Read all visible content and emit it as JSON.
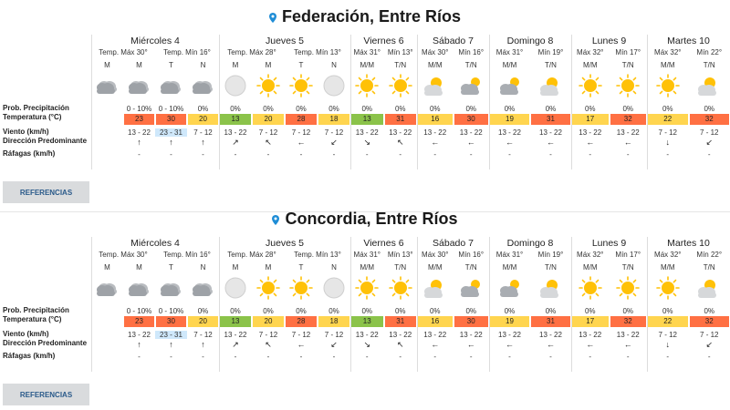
{
  "colors": {
    "pin": "#1f8dd6",
    "t_green": "#8bc34a",
    "t_yellow": "#ffd54f",
    "t_orange": "#ff7043",
    "t_red": "#f4511e",
    "t_lightgreen": "#c5e36b",
    "t_blue": "#cfe8fb"
  },
  "labels": {
    "precip": "Prob. Precipitación",
    "temp": "Temperatura (°C)",
    "wind": "Viento (km/h)",
    "dir": "Dirección Predominante",
    "gust": "Ráfagas (km/h)",
    "button": "REFERENCIAS"
  },
  "cities": [
    {
      "name": "Federación, Entre Ríos",
      "days": [
        {
          "name": "Miércoles 4",
          "tmax": "Temp. Máx 30°",
          "tmin": "Temp. Mín 16°",
          "periods": [
            "M",
            "M",
            "T",
            "N"
          ],
          "icons": [
            "cloudy",
            "cloudy",
            "cloudy",
            "cloudy"
          ],
          "precip": [
            "",
            "0 - 10%",
            "0 - 10%",
            "0%"
          ],
          "temps": [
            "",
            "23",
            "30",
            "20"
          ],
          "winds": [
            "",
            "13 - 22",
            "23 - 31",
            "7 - 12"
          ],
          "dirs": [
            "",
            "↑",
            "↑",
            "↑"
          ],
          "gusts": [
            "",
            "-",
            "-",
            "-"
          ]
        },
        {
          "name": "Jueves 5",
          "tmax": "Temp. Máx 28°",
          "tmin": "Temp. Mín 13°",
          "periods": [
            "M",
            "M",
            "T",
            "N"
          ],
          "icons": [
            "moon",
            "sun",
            "sun",
            "moon"
          ],
          "precip": [
            "0%",
            "0%",
            "0%",
            "0%"
          ],
          "temps": [
            "13",
            "20",
            "28",
            "18"
          ],
          "winds": [
            "13 - 22",
            "7 - 12",
            "7 - 12",
            "7 - 12"
          ],
          "dirs": [
            "↗",
            "↖",
            "←",
            "↙"
          ],
          "gusts": [
            "-",
            "-",
            "-",
            "-"
          ]
        },
        {
          "name": "Viernes 6",
          "tmax": "Máx 31°",
          "tmin": "Mín 13°",
          "periods": [
            "M/M",
            "T/N"
          ],
          "icons": [
            "sun",
            "sun"
          ],
          "precip": [
            "0%",
            "0%"
          ],
          "temps": [
            "13",
            "31"
          ],
          "winds": [
            "13 - 22",
            "13 - 22"
          ],
          "dirs": [
            "↘",
            "↖"
          ],
          "gusts": [
            "-",
            "-"
          ]
        },
        {
          "name": "Sábado 7",
          "tmax": "Máx 30°",
          "tmin": "Mín 16°",
          "periods": [
            "M/M",
            "T/N"
          ],
          "icons": [
            "partly",
            "cloudsun"
          ],
          "precip": [
            "0%",
            "0%"
          ],
          "temps": [
            "16",
            "30"
          ],
          "winds": [
            "13 - 22",
            "13 - 22"
          ],
          "dirs": [
            "←",
            "←"
          ],
          "gusts": [
            "-",
            "-"
          ]
        },
        {
          "name": "Domingo 8",
          "tmax": "Máx 31°",
          "tmin": "Mín 19°",
          "periods": [
            "M/M",
            "T/N"
          ],
          "icons": [
            "cloudsun",
            "partly"
          ],
          "precip": [
            "0%",
            "0%"
          ],
          "temps": [
            "19",
            "31"
          ],
          "winds": [
            "13 - 22",
            "13 - 22"
          ],
          "dirs": [
            "←",
            "←"
          ],
          "gusts": [
            "-",
            "-"
          ]
        },
        {
          "name": "Lunes 9",
          "tmax": "Máx 32°",
          "tmin": "Mín 17°",
          "periods": [
            "M/M",
            "T/N"
          ],
          "icons": [
            "sun",
            "sun"
          ],
          "precip": [
            "0%",
            "0%"
          ],
          "temps": [
            "17",
            "32"
          ],
          "winds": [
            "13 - 22",
            "13 - 22"
          ],
          "dirs": [
            "←",
            "←"
          ],
          "gusts": [
            "-",
            "-"
          ]
        },
        {
          "name": "Martes 10",
          "tmax": "Máx 32°",
          "tmin": "Mín 22°",
          "periods": [
            "M/M",
            "T/N"
          ],
          "icons": [
            "sun",
            "partly"
          ],
          "precip": [
            "0%",
            "0%"
          ],
          "temps": [
            "22",
            "32"
          ],
          "winds": [
            "7 - 12",
            "7 - 12"
          ],
          "dirs": [
            "↓",
            "↙"
          ],
          "gusts": [
            "-",
            "-"
          ]
        }
      ]
    },
    {
      "name": "Concordia, Entre Ríos",
      "days": [
        {
          "name": "Miércoles 4",
          "tmax": "Temp. Máx 30°",
          "tmin": "Temp. Mín 16°",
          "periods": [
            "M",
            "M",
            "T",
            "N"
          ],
          "icons": [
            "cloudy",
            "cloudy",
            "cloudy",
            "cloudy"
          ],
          "precip": [
            "",
            "0 - 10%",
            "0 - 10%",
            "0%"
          ],
          "temps": [
            "",
            "23",
            "30",
            "20"
          ],
          "winds": [
            "",
            "13 - 22",
            "23 - 31",
            "7 - 12"
          ],
          "dirs": [
            "",
            "↑",
            "↑",
            "↑"
          ],
          "gusts": [
            "",
            "-",
            "-",
            "-"
          ]
        },
        {
          "name": "Jueves 5",
          "tmax": "Temp. Máx 28°",
          "tmin": "Temp. Mín 13°",
          "periods": [
            "M",
            "M",
            "T",
            "N"
          ],
          "icons": [
            "moon",
            "sun",
            "sun",
            "moon"
          ],
          "precip": [
            "0%",
            "0%",
            "0%",
            "0%"
          ],
          "temps": [
            "13",
            "20",
            "28",
            "18"
          ],
          "winds": [
            "13 - 22",
            "7 - 12",
            "7 - 12",
            "7 - 12"
          ],
          "dirs": [
            "↗",
            "↖",
            "←",
            "↙"
          ],
          "gusts": [
            "-",
            "-",
            "-",
            "-"
          ]
        },
        {
          "name": "Viernes 6",
          "tmax": "Máx 31°",
          "tmin": "Mín 13°",
          "periods": [
            "M/M",
            "T/N"
          ],
          "icons": [
            "sun",
            "sun"
          ],
          "precip": [
            "0%",
            "0%"
          ],
          "temps": [
            "13",
            "31"
          ],
          "winds": [
            "13 - 22",
            "13 - 22"
          ],
          "dirs": [
            "↘",
            "↖"
          ],
          "gusts": [
            "-",
            "-"
          ]
        },
        {
          "name": "Sábado 7",
          "tmax": "Máx 30°",
          "tmin": "Mín 16°",
          "periods": [
            "M/M",
            "T/N"
          ],
          "icons": [
            "partly",
            "cloudsun"
          ],
          "precip": [
            "0%",
            "0%"
          ],
          "temps": [
            "16",
            "30"
          ],
          "winds": [
            "13 - 22",
            "13 - 22"
          ],
          "dirs": [
            "←",
            "←"
          ],
          "gusts": [
            "-",
            "-"
          ]
        },
        {
          "name": "Domingo 8",
          "tmax": "Máx 31°",
          "tmin": "Mín 19°",
          "periods": [
            "M/M",
            "T/N"
          ],
          "icons": [
            "cloudsun",
            "partly"
          ],
          "precip": [
            "0%",
            "0%"
          ],
          "temps": [
            "19",
            "31"
          ],
          "winds": [
            "13 - 22",
            "13 - 22"
          ],
          "dirs": [
            "←",
            "←"
          ],
          "gusts": [
            "-",
            "-"
          ]
        },
        {
          "name": "Lunes 9",
          "tmax": "Máx 32°",
          "tmin": "Mín 17°",
          "periods": [
            "M/M",
            "T/N"
          ],
          "icons": [
            "sun",
            "sun"
          ],
          "precip": [
            "0%",
            "0%"
          ],
          "temps": [
            "17",
            "32"
          ],
          "winds": [
            "13 - 22",
            "13 - 22"
          ],
          "dirs": [
            "←",
            "←"
          ],
          "gusts": [
            "-",
            "-"
          ]
        },
        {
          "name": "Martes 10",
          "tmax": "Máx 32°",
          "tmin": "Mín 22°",
          "periods": [
            "M/M",
            "T/N"
          ],
          "icons": [
            "sun",
            "partly"
          ],
          "precip": [
            "0%",
            "0%"
          ],
          "temps": [
            "22",
            "32"
          ],
          "winds": [
            "7 - 12",
            "7 - 12"
          ],
          "dirs": [
            "↓",
            "↙"
          ],
          "gusts": [
            "-",
            "-"
          ]
        }
      ]
    }
  ]
}
